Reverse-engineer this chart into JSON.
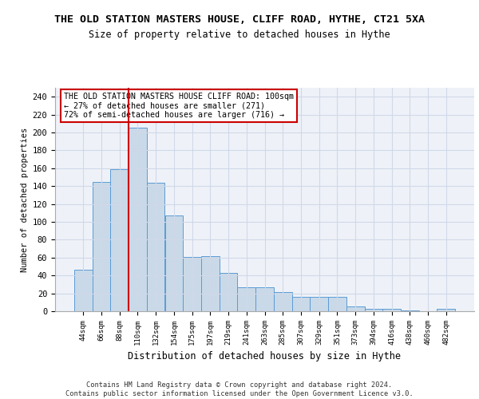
{
  "title1": "THE OLD STATION MASTERS HOUSE, CLIFF ROAD, HYTHE, CT21 5XA",
  "title2": "Size of property relative to detached houses in Hythe",
  "xlabel": "Distribution of detached houses by size in Hythe",
  "ylabel": "Number of detached properties",
  "bar_labels": [
    "44sqm",
    "66sqm",
    "88sqm",
    "110sqm",
    "132sqm",
    "154sqm",
    "175sqm",
    "197sqm",
    "219sqm",
    "241sqm",
    "263sqm",
    "285sqm",
    "307sqm",
    "329sqm",
    "351sqm",
    "373sqm",
    "394sqm",
    "416sqm",
    "438sqm",
    "460sqm",
    "482sqm"
  ],
  "bar_values": [
    46,
    145,
    159,
    205,
    144,
    107,
    61,
    62,
    43,
    27,
    27,
    21,
    16,
    16,
    16,
    5,
    3,
    3,
    1,
    0,
    3
  ],
  "bar_color": "#c9d9e8",
  "bar_edge_color": "#5b9bd5",
  "vline_color": "#cc0000",
  "annotation_text": "THE OLD STATION MASTERS HOUSE CLIFF ROAD: 100sqm\n← 27% of detached houses are smaller (271)\n72% of semi-detached houses are larger (716) →",
  "annotation_box_color": "white",
  "annotation_box_edge_color": "#cc0000",
  "ylim": [
    0,
    250
  ],
  "yticks": [
    0,
    20,
    40,
    60,
    80,
    100,
    120,
    140,
    160,
    180,
    200,
    220,
    240
  ],
  "grid_color": "#d0d8e8",
  "footer": "Contains HM Land Registry data © Crown copyright and database right 2024.\nContains public sector information licensed under the Open Government Licence v3.0.",
  "bg_color": "#eef2f8"
}
